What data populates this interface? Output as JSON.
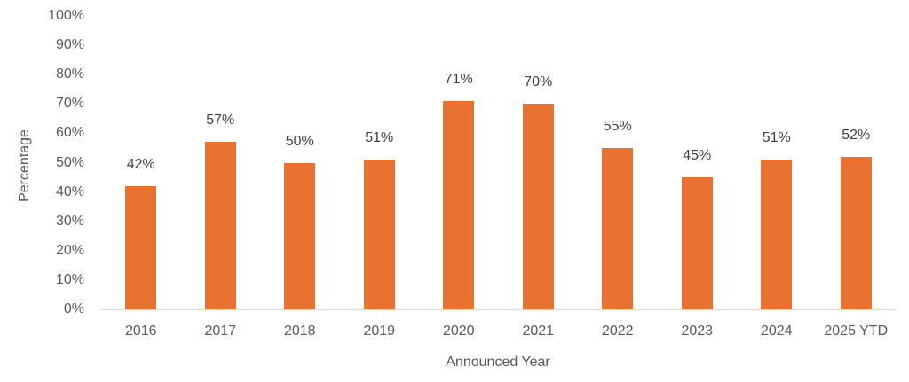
{
  "chart_data": {
    "type": "bar",
    "title": "",
    "xlabel": "Announced Year",
    "ylabel": "Percentage",
    "categories": [
      "2016",
      "2017",
      "2018",
      "2019",
      "2020",
      "2021",
      "2022",
      "2023",
      "2024",
      "2025 YTD"
    ],
    "values": [
      42,
      57,
      50,
      51,
      71,
      70,
      55,
      45,
      51,
      52
    ],
    "data_labels": [
      "42%",
      "57%",
      "50%",
      "51%",
      "71%",
      "70%",
      "55%",
      "45%",
      "51%",
      "52%"
    ],
    "ylim": [
      0,
      100
    ],
    "yticks": [
      "0%",
      "10%",
      "20%",
      "30%",
      "40%",
      "50%",
      "60%",
      "70%",
      "80%",
      "90%",
      "100%"
    ],
    "grid": false,
    "legend": null,
    "bar_color": "#e97132"
  }
}
